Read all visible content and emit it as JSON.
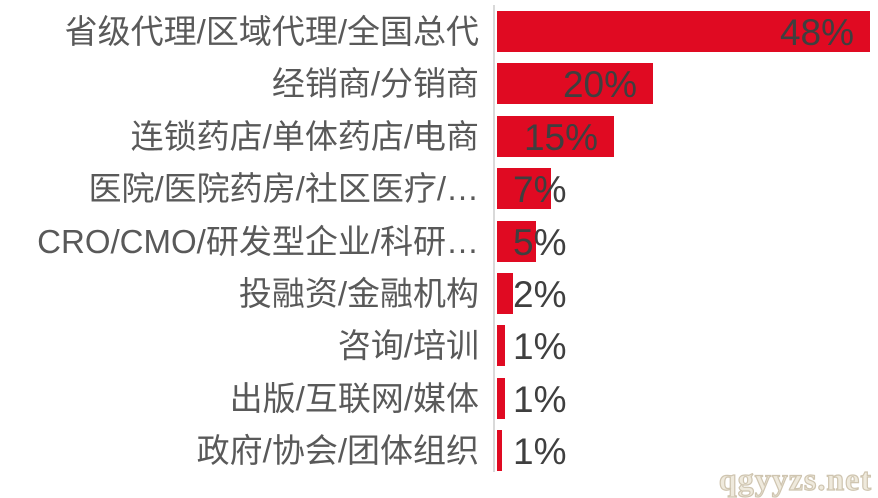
{
  "chart_data": {
    "type": "bar",
    "orientation": "horizontal",
    "title": "",
    "xlabel": "",
    "ylabel": "",
    "grid": false,
    "legend": false,
    "xlim": [
      0,
      48
    ],
    "categories": [
      "省级代理/区域代理/全国总代",
      "经销商/分销商",
      "连锁药店/单体药店/电商",
      "医院/医院药房/社区医疗/…",
      "CRO/CMO/研发型企业/科研…",
      "投融资/金融机构",
      "咨询/培训",
      "出版/互联网/媒体",
      "政府/协会/团体组织"
    ],
    "values": [
      48,
      20,
      15,
      7,
      5,
      2,
      1,
      1,
      0.6
    ],
    "value_labels": [
      "48%",
      "20%",
      "15%",
      "7%",
      "5%",
      "2%",
      "1%",
      "1%",
      "1%"
    ],
    "value_label_position": "inside-end for bars >= 15%, outside-end for smaller bars",
    "colors": {
      "bar": "#E00A22",
      "axis_line": "#D9D9D9",
      "category_label": "#595959",
      "value_label": "#3F3F3F",
      "background": "#FFFFFF"
    }
  },
  "watermark": {
    "text": "qgyyzs.net",
    "outline_color": "#CFC5B0"
  }
}
